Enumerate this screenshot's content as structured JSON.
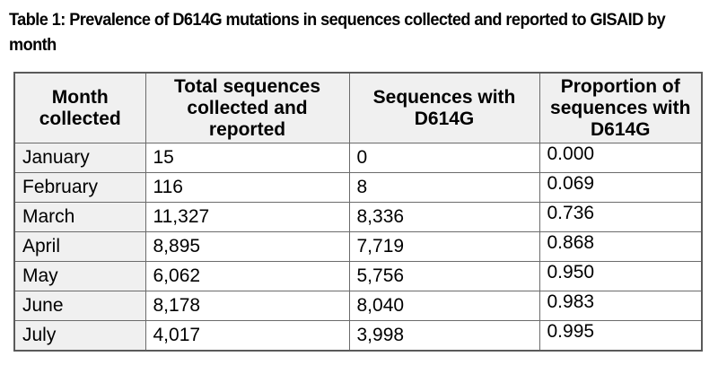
{
  "caption": "Table 1: Prevalence of D614G mutations in sequences collected and reported to GISAID by month",
  "table": {
    "headers": [
      "Month collected",
      "Total sequences collected and reported",
      "Sequences with D614G",
      "Proportion of sequences with D614G"
    ],
    "rows": [
      [
        "January",
        "15",
        "0",
        "0.000"
      ],
      [
        "February",
        "116",
        "8",
        "0.069"
      ],
      [
        "March",
        "11,327",
        "8,336",
        "0.736"
      ],
      [
        "April",
        "8,895",
        "7,719",
        "0.868"
      ],
      [
        "May",
        "6,062",
        "5,756",
        "0.950"
      ],
      [
        "June",
        "8,178",
        "8,040",
        "0.983"
      ],
      [
        "July",
        "4,017",
        "3,998",
        "0.995"
      ]
    ]
  },
  "colors": {
    "header_bg": "#f0f0f0",
    "month_col_bg": "#f0f0f0",
    "border": "#6b6b6b",
    "text": "#000000"
  }
}
